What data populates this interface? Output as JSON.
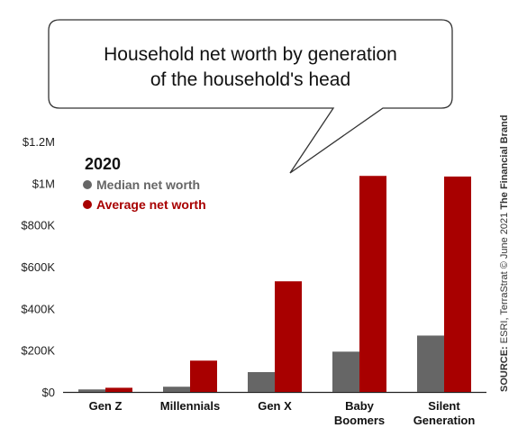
{
  "chart_data": {
    "type": "bar",
    "title_lines": [
      "Household net worth by generation",
      "of the household's head"
    ],
    "categories": [
      [
        "Gen Z"
      ],
      [
        "Millennials"
      ],
      [
        "Gen X"
      ],
      [
        "Baby",
        "Boomers"
      ],
      [
        "Silent",
        "Generation"
      ]
    ],
    "series": [
      {
        "name": "Median net worth",
        "color": "#666666",
        "values": [
          12000,
          25000,
          95000,
          193000,
          270000
        ]
      },
      {
        "name": "Average net worth",
        "color": "#a80000",
        "values": [
          20000,
          150000,
          530000,
          1035000,
          1032000
        ]
      }
    ],
    "legend_title": "2020",
    "y_ticks": [
      "$0",
      "$200K",
      "$400K",
      "$600K",
      "$800K",
      "$1M",
      "$1.2M"
    ],
    "ylim": [
      0,
      1200000
    ],
    "grid": false,
    "legend_position": "top-left"
  },
  "source": {
    "label": "SOURCE:",
    "text": " ESRI, TerraStrat © June 2021 ",
    "brand": "The Financial Brand"
  }
}
